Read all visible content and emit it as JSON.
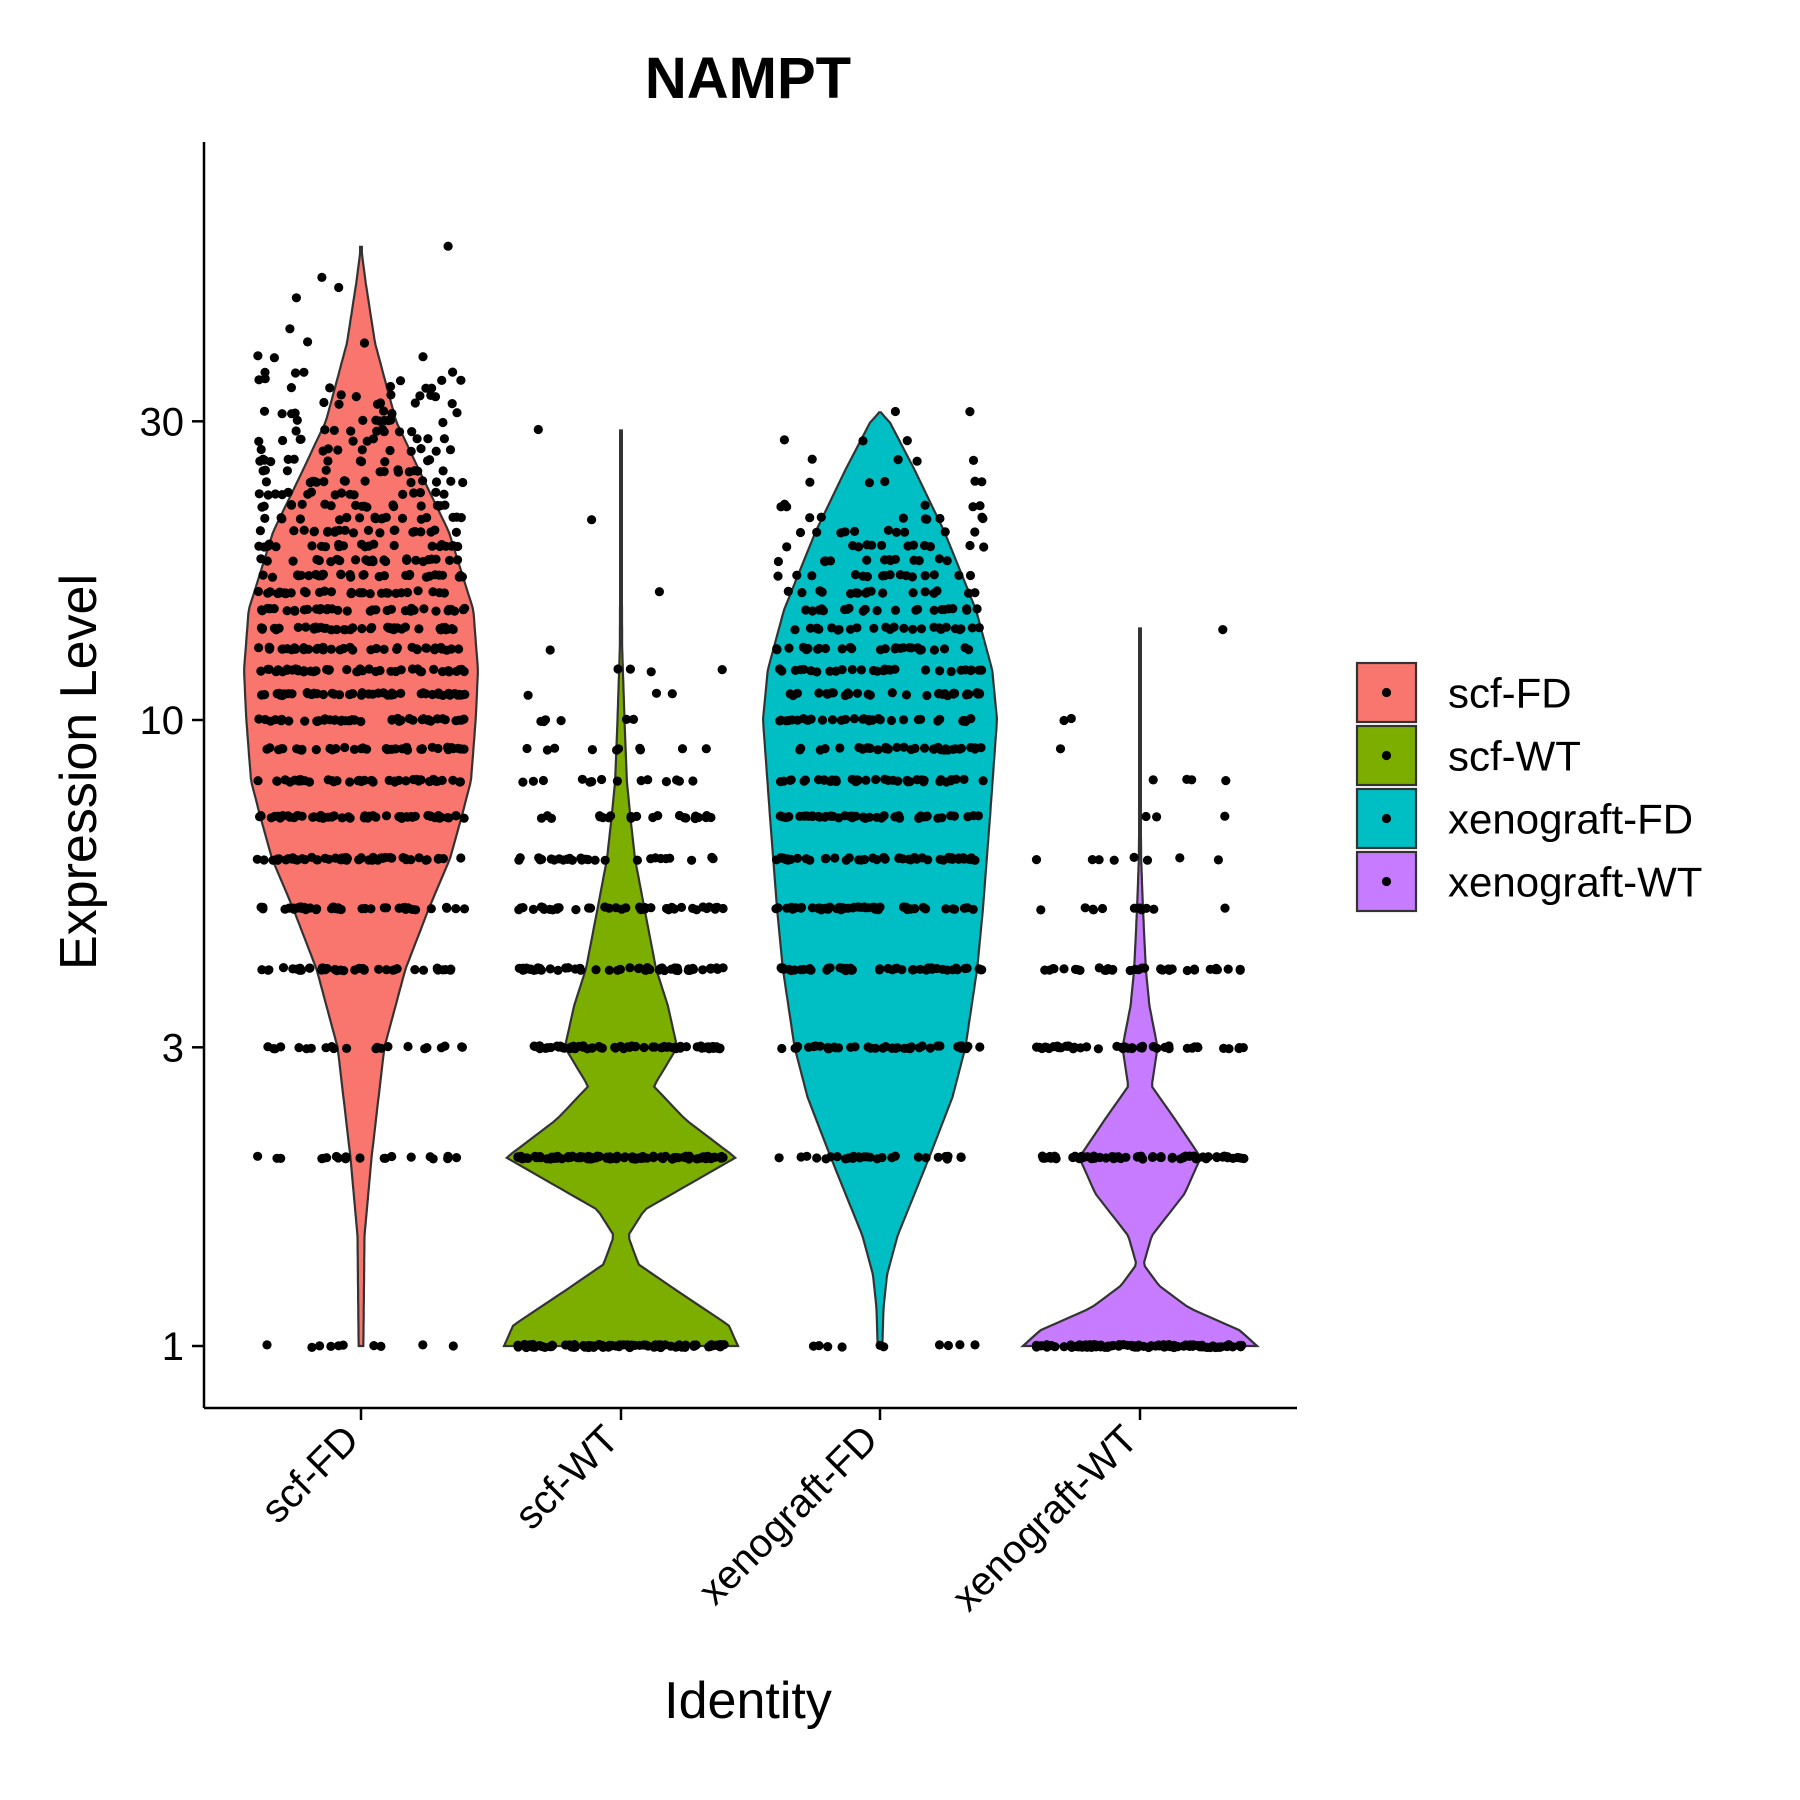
{
  "chart_data": {
    "type": "violin",
    "title": "NAMPT",
    "xlabel": "Identity",
    "ylabel": "Expression Level",
    "y_scale": "log",
    "ylim": [
      0.84,
      70
    ],
    "y_ticks": [
      1,
      3,
      10,
      30
    ],
    "y_tick_labels": [
      "1",
      "3",
      "10",
      "30"
    ],
    "categories": [
      "scf-FD",
      "scf-WT",
      "xenograft-FD",
      "xenograft-WT"
    ],
    "legend_position": "right",
    "grid": false,
    "series": [
      {
        "name": "scf-FD",
        "color": "#F8766D",
        "y_max": 57,
        "density": [
          [
            1,
            0.02
          ],
          [
            1.5,
            0.03
          ],
          [
            2,
            0.09
          ],
          [
            3,
            0.2
          ],
          [
            4,
            0.38
          ],
          [
            5,
            0.58
          ],
          [
            6,
            0.76
          ],
          [
            7,
            0.86
          ],
          [
            8,
            0.94
          ],
          [
            10,
            0.98
          ],
          [
            12,
            1.0
          ],
          [
            15,
            0.96
          ],
          [
            20,
            0.75
          ],
          [
            25,
            0.5
          ],
          [
            30,
            0.3
          ],
          [
            40,
            0.12
          ],
          [
            50,
            0.04
          ],
          [
            57,
            0.0
          ]
        ],
        "dot_levels": [
          {
            "value": 1,
            "count": 10
          },
          {
            "value": 2,
            "count": 20
          },
          {
            "value": 3,
            "count": 22
          },
          {
            "value": 4,
            "count": 40
          },
          {
            "value": 5,
            "count": 42
          },
          {
            "value": 6,
            "count": 55
          },
          {
            "value": 7,
            "count": 56
          },
          {
            "value": 8,
            "count": 44
          },
          {
            "value": 9,
            "count": 40
          },
          {
            "value": 10,
            "count": 46
          },
          {
            "value": 11,
            "count": 50
          },
          {
            "value": 12,
            "count": 46
          },
          {
            "value": 13,
            "count": 40
          },
          {
            "value": 14,
            "count": 42
          },
          {
            "value": 15,
            "count": 38
          },
          {
            "value": 16,
            "count": 32
          },
          {
            "value": 17,
            "count": 30
          },
          {
            "value": 18,
            "count": 26
          },
          {
            "value": 19,
            "count": 24
          },
          {
            "value": 20,
            "count": 22
          },
          {
            "value": 21,
            "count": 20
          },
          {
            "value": 22,
            "count": 18
          },
          {
            "value": 23,
            "count": 16
          },
          {
            "value": 24,
            "count": 14
          },
          {
            "value": 25,
            "count": 12
          },
          {
            "value": 26,
            "count": 12
          },
          {
            "value": 27,
            "count": 10
          },
          {
            "value": 28,
            "count": 10
          },
          {
            "value": 29,
            "count": 9
          },
          {
            "value": 30,
            "count": 8
          },
          {
            "value": 31,
            "count": 7
          },
          {
            "value": 32,
            "count": 6
          },
          {
            "value": 33,
            "count": 6
          },
          {
            "value": 34,
            "count": 5
          },
          {
            "value": 35,
            "count": 5
          },
          {
            "value": 36,
            "count": 4
          },
          {
            "value": 38,
            "count": 3
          },
          {
            "value": 40,
            "count": 2
          },
          {
            "value": 42,
            "count": 1
          },
          {
            "value": 47,
            "count": 1
          },
          {
            "value": 49,
            "count": 1
          },
          {
            "value": 51,
            "count": 1
          },
          {
            "value": 57,
            "count": 1
          }
        ]
      },
      {
        "name": "scf-WT",
        "color": "#7CAE00",
        "y_max": 29,
        "density": [
          [
            1,
            1.0
          ],
          [
            1.08,
            0.92
          ],
          [
            1.2,
            0.55
          ],
          [
            1.35,
            0.15
          ],
          [
            1.5,
            0.06
          ],
          [
            1.65,
            0.2
          ],
          [
            2,
            0.98
          ],
          [
            2.3,
            0.55
          ],
          [
            2.6,
            0.28
          ],
          [
            3,
            0.48
          ],
          [
            3.5,
            0.4
          ],
          [
            4,
            0.3
          ],
          [
            5,
            0.2
          ],
          [
            6,
            0.12
          ],
          [
            7,
            0.08
          ],
          [
            8,
            0.05
          ],
          [
            10,
            0.03
          ],
          [
            13,
            0.01
          ],
          [
            29,
            0.0
          ]
        ],
        "dot_levels": [
          {
            "value": 1,
            "count": 110
          },
          {
            "value": 2,
            "count": 110
          },
          {
            "value": 3,
            "count": 70
          },
          {
            "value": 4,
            "count": 55
          },
          {
            "value": 5,
            "count": 40
          },
          {
            "value": 6,
            "count": 28
          },
          {
            "value": 7,
            "count": 22
          },
          {
            "value": 8,
            "count": 14
          },
          {
            "value": 9,
            "count": 10
          },
          {
            "value": 10,
            "count": 6
          },
          {
            "value": 11,
            "count": 3
          },
          {
            "value": 12,
            "count": 4
          },
          {
            "value": 13,
            "count": 1
          },
          {
            "value": 16,
            "count": 1
          },
          {
            "value": 21,
            "count": 1
          },
          {
            "value": 29,
            "count": 1
          }
        ]
      },
      {
        "name": "xenograft-FD",
        "color": "#00BFC4",
        "y_max": 31,
        "density": [
          [
            1,
            0.02
          ],
          [
            1.15,
            0.03
          ],
          [
            1.3,
            0.06
          ],
          [
            1.5,
            0.15
          ],
          [
            2,
            0.42
          ],
          [
            2.5,
            0.62
          ],
          [
            3,
            0.73
          ],
          [
            4,
            0.83
          ],
          [
            5,
            0.88
          ],
          [
            7,
            0.94
          ],
          [
            10,
            1.0
          ],
          [
            12,
            0.96
          ],
          [
            15,
            0.82
          ],
          [
            20,
            0.55
          ],
          [
            25,
            0.3
          ],
          [
            30,
            0.08
          ],
          [
            31,
            0.0
          ]
        ],
        "dot_levels": [
          {
            "value": 1,
            "count": 10
          },
          {
            "value": 2,
            "count": 28
          },
          {
            "value": 3,
            "count": 42
          },
          {
            "value": 4,
            "count": 55
          },
          {
            "value": 5,
            "count": 52
          },
          {
            "value": 6,
            "count": 50
          },
          {
            "value": 7,
            "count": 48
          },
          {
            "value": 8,
            "count": 40
          },
          {
            "value": 9,
            "count": 36
          },
          {
            "value": 10,
            "count": 34
          },
          {
            "value": 11,
            "count": 32
          },
          {
            "value": 12,
            "count": 30
          },
          {
            "value": 13,
            "count": 28
          },
          {
            "value": 14,
            "count": 26
          },
          {
            "value": 15,
            "count": 22
          },
          {
            "value": 16,
            "count": 18
          },
          {
            "value": 17,
            "count": 16
          },
          {
            "value": 18,
            "count": 14
          },
          {
            "value": 19,
            "count": 12
          },
          {
            "value": 20,
            "count": 10
          },
          {
            "value": 21,
            "count": 8
          },
          {
            "value": 22,
            "count": 6
          },
          {
            "value": 24,
            "count": 5
          },
          {
            "value": 26,
            "count": 4
          },
          {
            "value": 28,
            "count": 3
          },
          {
            "value": 31,
            "count": 2
          }
        ]
      },
      {
        "name": "xenograft-WT",
        "color": "#C77CFF",
        "y_max": 14,
        "density": [
          [
            1,
            1.0
          ],
          [
            1.06,
            0.85
          ],
          [
            1.15,
            0.42
          ],
          [
            1.25,
            0.16
          ],
          [
            1.35,
            0.03
          ],
          [
            1.5,
            0.1
          ],
          [
            1.75,
            0.38
          ],
          [
            2,
            0.52
          ],
          [
            2.3,
            0.3
          ],
          [
            2.6,
            0.1
          ],
          [
            3,
            0.15
          ],
          [
            3.5,
            0.08
          ],
          [
            4,
            0.05
          ],
          [
            5,
            0.025
          ],
          [
            6,
            0.01
          ],
          [
            8,
            0.003
          ],
          [
            14,
            0.0
          ]
        ],
        "dot_levels": [
          {
            "value": 1,
            "count": 110
          },
          {
            "value": 2,
            "count": 70
          },
          {
            "value": 3,
            "count": 45
          },
          {
            "value": 4,
            "count": 35
          },
          {
            "value": 5,
            "count": 12
          },
          {
            "value": 6,
            "count": 8
          },
          {
            "value": 7,
            "count": 3
          },
          {
            "value": 8,
            "count": 4
          },
          {
            "value": 9,
            "count": 1
          },
          {
            "value": 10,
            "count": 2
          },
          {
            "value": 14,
            "count": 1
          }
        ]
      }
    ]
  }
}
